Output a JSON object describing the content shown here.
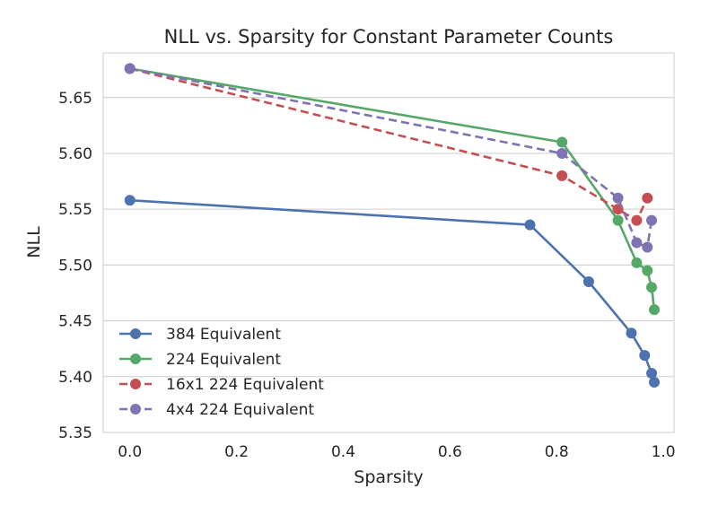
{
  "chart_data": {
    "type": "line",
    "title": "NLL vs. Sparsity for Constant Parameter Counts",
    "xlabel": "Sparsity",
    "ylabel": "NLL",
    "xlim": [
      -0.05,
      1.02
    ],
    "ylim": [
      5.35,
      5.69
    ],
    "xticks": [
      "0.0",
      "0.2",
      "0.4",
      "0.6",
      "0.8",
      "1.0"
    ],
    "xtick_values": [
      0.0,
      0.2,
      0.4,
      0.6,
      0.8,
      1.0
    ],
    "yticks": [
      "5.35",
      "5.40",
      "5.45",
      "5.50",
      "5.55",
      "5.60",
      "5.65"
    ],
    "ytick_values": [
      5.35,
      5.4,
      5.45,
      5.5,
      5.55,
      5.6,
      5.65
    ],
    "grid": true,
    "legend_position": "lower-left",
    "series": [
      {
        "name": "384 Equivalent",
        "color": "#4c72b0",
        "dashed": false,
        "x": [
          0.0,
          0.75,
          0.86,
          0.94,
          0.965,
          0.978,
          0.983
        ],
        "y": [
          5.558,
          5.536,
          5.485,
          5.439,
          5.419,
          5.403,
          5.395
        ]
      },
      {
        "name": "224 Equivalent",
        "color": "#55a868",
        "dashed": false,
        "x": [
          0.0,
          0.81,
          0.915,
          0.95,
          0.97,
          0.978,
          0.983
        ],
        "y": [
          5.676,
          5.61,
          5.54,
          5.502,
          5.495,
          5.48,
          5.46
        ]
      },
      {
        "name": "16x1 224 Equivalent",
        "color": "#c44e52",
        "dashed": true,
        "x": [
          0.0,
          0.81,
          0.915,
          0.95,
          0.97
        ],
        "y": [
          5.676,
          5.58,
          5.55,
          5.54,
          5.56
        ]
      },
      {
        "name": "4x4 224 Equivalent",
        "color": "#8172b2",
        "dashed": true,
        "x": [
          0.0,
          0.81,
          0.915,
          0.95,
          0.97,
          0.978
        ],
        "y": [
          5.676,
          5.6,
          5.56,
          5.52,
          5.516,
          5.54
        ]
      }
    ]
  }
}
